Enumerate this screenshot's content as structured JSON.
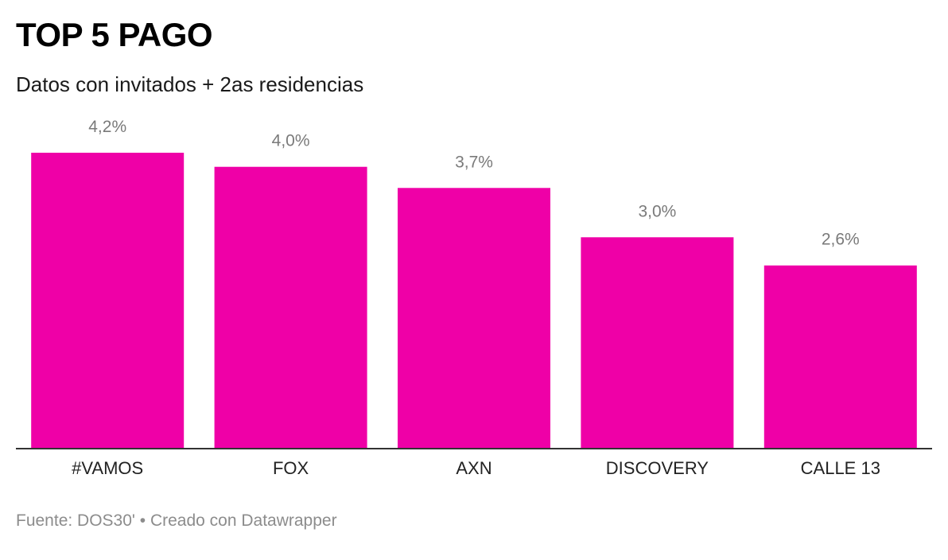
{
  "chart_data": {
    "type": "bar",
    "title": "TOP 5 PAGO",
    "subtitle": "Datos con invitados + 2as residencias",
    "categories": [
      "#VAMOS",
      "FOX",
      "AXN",
      "DISCOVERY",
      "CALLE 13"
    ],
    "values": [
      4.2,
      4.0,
      3.7,
      3.0,
      2.6
    ],
    "value_labels": [
      "4,2%",
      "4,0%",
      "3,7%",
      "3,0%",
      "2,6%"
    ],
    "bar_color": "#ef00a7",
    "ylim": [
      0,
      4.2
    ],
    "grid": false,
    "legend": "none"
  },
  "footer": {
    "source": "Fuente: DOS30' • Creado con Datawrapper"
  }
}
